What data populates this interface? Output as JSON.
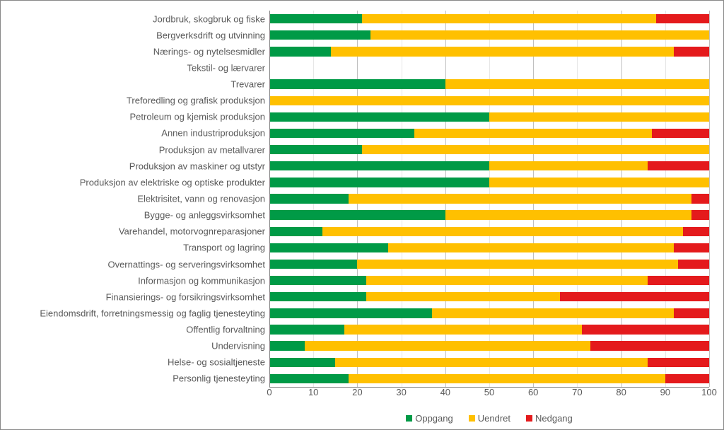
{
  "chart": {
    "type": "stacked-bar-horizontal",
    "xlim": [
      0,
      100
    ],
    "xtick_step": 10,
    "background_color": "#ffffff",
    "border_color": "#888888",
    "grid_color_major": "#bfbfbf",
    "grid_color_minor": "#e6e6e6",
    "text_color": "#595959",
    "label_fontsize": 13,
    "bar_height_ratio": 0.58,
    "series": [
      {
        "key": "oppgang",
        "label": "Oppgang",
        "color": "#009a46"
      },
      {
        "key": "uendret",
        "label": "Uendret",
        "color": "#ffc000"
      },
      {
        "key": "nedgang",
        "label": "Nedgang",
        "color": "#e41a1c"
      }
    ],
    "categories": [
      {
        "label": "Jordbruk, skogbruk og fiske",
        "oppgang": 21,
        "uendret": 67,
        "nedgang": 12
      },
      {
        "label": "Bergverksdrift og utvinning",
        "oppgang": 23,
        "uendret": 77,
        "nedgang": 0
      },
      {
        "label": "Nærings- og nytelsesmidler",
        "oppgang": 14,
        "uendret": 78,
        "nedgang": 8
      },
      {
        "label": "Tekstil- og lærvarer",
        "oppgang": 0,
        "uendret": 0,
        "nedgang": 0
      },
      {
        "label": "Trevarer",
        "oppgang": 40,
        "uendret": 60,
        "nedgang": 0
      },
      {
        "label": "Treforedling og grafisk produksjon",
        "oppgang": 0,
        "uendret": 100,
        "nedgang": 0
      },
      {
        "label": "Petroleum og kjemisk produksjon",
        "oppgang": 50,
        "uendret": 50,
        "nedgang": 0
      },
      {
        "label": "Annen industriproduksjon",
        "oppgang": 33,
        "uendret": 54,
        "nedgang": 13
      },
      {
        "label": "Produksjon av metallvarer",
        "oppgang": 21,
        "uendret": 79,
        "nedgang": 0
      },
      {
        "label": "Produksjon av maskiner og utstyr",
        "oppgang": 50,
        "uendret": 36,
        "nedgang": 14
      },
      {
        "label": "Produksjon av elektriske og optiske produkter",
        "oppgang": 50,
        "uendret": 50,
        "nedgang": 0
      },
      {
        "label": "Elektrisitet, vann og renovasjon",
        "oppgang": 18,
        "uendret": 78,
        "nedgang": 4
      },
      {
        "label": "Bygge- og anleggsvirksomhet",
        "oppgang": 40,
        "uendret": 56,
        "nedgang": 4
      },
      {
        "label": "Varehandel, motorvognreparasjoner",
        "oppgang": 12,
        "uendret": 82,
        "nedgang": 6
      },
      {
        "label": "Transport og lagring",
        "oppgang": 27,
        "uendret": 65,
        "nedgang": 8
      },
      {
        "label": "Overnattings- og serveringsvirksomhet",
        "oppgang": 20,
        "uendret": 73,
        "nedgang": 7
      },
      {
        "label": "Informasjon og kommunikasjon",
        "oppgang": 22,
        "uendret": 64,
        "nedgang": 14
      },
      {
        "label": "Finansierings- og forsikringsvirksomhet",
        "oppgang": 22,
        "uendret": 44,
        "nedgang": 34
      },
      {
        "label": "Eiendomsdrift, forretningsmessig og faglig tjenesteyting",
        "oppgang": 37,
        "uendret": 55,
        "nedgang": 8
      },
      {
        "label": "Offentlig forvaltning",
        "oppgang": 17,
        "uendret": 54,
        "nedgang": 29
      },
      {
        "label": "Undervisning",
        "oppgang": 8,
        "uendret": 65,
        "nedgang": 27
      },
      {
        "label": "Helse- og sosialtjeneste",
        "oppgang": 15,
        "uendret": 71,
        "nedgang": 14
      },
      {
        "label": "Personlig tjenesteyting",
        "oppgang": 18,
        "uendret": 72,
        "nedgang": 10
      }
    ]
  }
}
